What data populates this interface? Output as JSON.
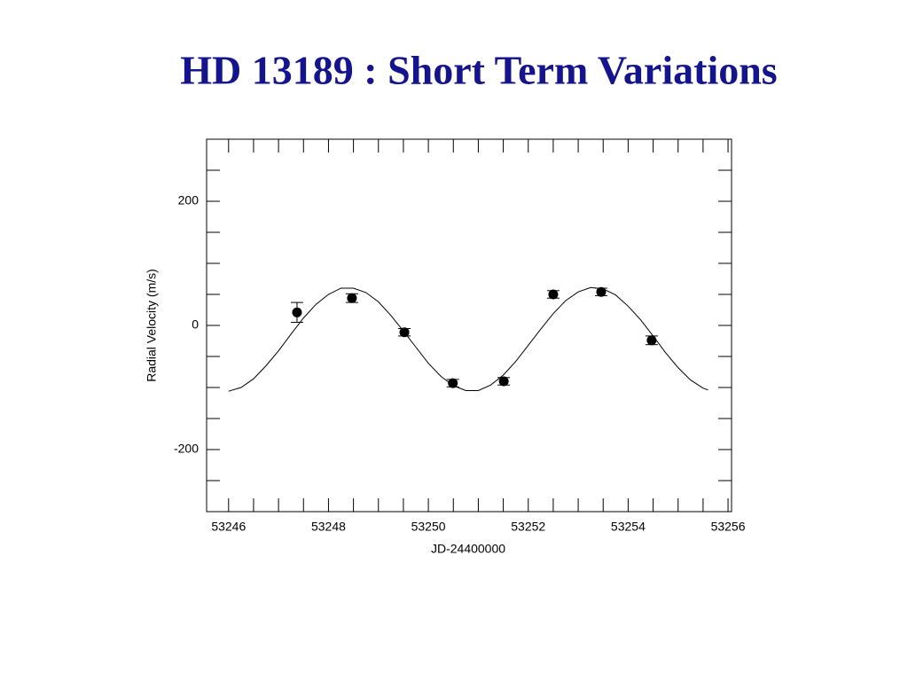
{
  "chart_data": {
    "type": "scatter",
    "title": "HD 13189 : Short Term Variations",
    "x_label": "JD-24400000",
    "y_label": "Radial Velocity (m/s)",
    "xlim": [
      53245.56,
      53256.07
    ],
    "ylim": [
      -300,
      300
    ],
    "xticks": [
      53246,
      53248,
      53250,
      53252,
      53254,
      53256
    ],
    "yticks": [
      -200,
      0,
      200
    ],
    "xminorticks": [
      53246.5,
      53247,
      53247.5,
      53248.5,
      53249,
      53249.5,
      53250.5,
      53251,
      53251.5,
      53252.5,
      53253,
      53253.5,
      53254.5,
      53255,
      53255.5
    ],
    "yminorticks": [
      -250,
      -150,
      -100,
      -50,
      50,
      100,
      150,
      250
    ],
    "points": {
      "color": "#000000",
      "x": [
        53247.37,
        53248.47,
        53249.52,
        53250.49,
        53251.51,
        53252.5,
        53253.46,
        53254.47
      ],
      "y": [
        21,
        44,
        -11,
        -93,
        -90,
        50,
        54,
        -24
      ],
      "yerr": [
        16,
        7,
        6,
        6,
        6,
        6,
        6,
        7
      ]
    },
    "fit": {
      "color": "#000000",
      "x": [
        53246,
        53246.25,
        53246.5,
        53246.75,
        53247,
        53247.25,
        53247.5,
        53247.75,
        53248,
        53248.25,
        53248.5,
        53248.75,
        53249,
        53249.25,
        53249.5,
        53249.75,
        53250,
        53250.25,
        53250.5,
        53250.75,
        53251,
        53251.25,
        53251.5,
        53251.75,
        53252,
        53252.25,
        53252.5,
        53252.75,
        53253,
        53253.25,
        53253.5,
        53253.75,
        53254,
        53254.25,
        53254.5,
        53254.75,
        53255,
        53255.25,
        53255.5,
        53255.6
      ],
      "y": [
        -106,
        -100,
        -86,
        -65,
        -41,
        -14,
        12,
        34,
        50,
        60,
        60,
        53,
        38,
        16,
        -9,
        -35,
        -61,
        -82,
        -97,
        -105,
        -105,
        -96,
        -80,
        -58,
        -32,
        -6,
        19,
        40,
        54,
        61,
        59,
        49,
        31,
        9,
        -17,
        -44,
        -68,
        -88,
        -101,
        -104
      ]
    }
  }
}
